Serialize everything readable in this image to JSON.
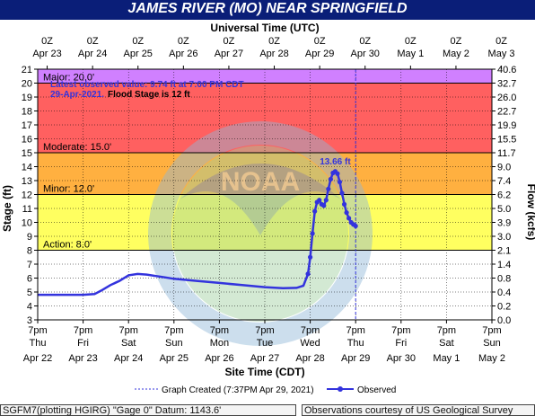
{
  "header": {
    "title": "JAMES RIVER (MO) NEAR SPRINGFIELD"
  },
  "top_axis": {
    "title": "Universal Time (UTC)",
    "hour_labels": [
      "0Z",
      "0Z",
      "0Z",
      "0Z",
      "0Z",
      "0Z",
      "0Z",
      "0Z",
      "0Z",
      "0Z",
      "0Z"
    ],
    "date_labels": [
      "Apr 23",
      "Apr 24",
      "Apr 25",
      "Apr 26",
      "Apr 27",
      "Apr 28",
      "Apr 29",
      "Apr 30",
      "May 1",
      "May 2",
      "May 3"
    ]
  },
  "bottom_axis": {
    "title": "Site Time (CDT)",
    "time_labels": [
      "7pm",
      "7pm",
      "7pm",
      "7pm",
      "7pm",
      "7pm",
      "7pm",
      "7pm",
      "7pm",
      "7pm",
      "7pm"
    ],
    "day_labels": [
      "Thu",
      "Fri",
      "Sat",
      "Sun",
      "Mon",
      "Tue",
      "Wed",
      "Thu",
      "Fri",
      "Sat",
      "Sun"
    ],
    "date_labels": [
      "Apr 22",
      "Apr 23",
      "Apr 24",
      "Apr 25",
      "Apr 26",
      "Apr 27",
      "Apr 28",
      "Apr 29",
      "Apr 30",
      "May 1",
      "May 2"
    ]
  },
  "left_axis": {
    "title": "Stage (ft)",
    "ticks": [
      "3",
      "4",
      "5",
      "6",
      "7",
      "8",
      "9",
      "10",
      "11",
      "12",
      "13",
      "14",
      "15",
      "16",
      "17",
      "18",
      "19",
      "20",
      "21"
    ]
  },
  "right_axis": {
    "title": "Flow (kcfs)",
    "ticks": [
      "0.0",
      "0.2",
      "0.4",
      "0.8",
      "1.4",
      "2.1",
      "3.0",
      "3.9",
      "5.0",
      "6.2",
      "7.4",
      "9.0",
      "11.7",
      "15.5",
      "19.9",
      "22.7",
      "26.0",
      "32.7",
      "40.6"
    ]
  },
  "bands": [
    {
      "label": "Action: 8.0'",
      "from": 8,
      "to": 12,
      "color": "#ffff60"
    },
    {
      "label": "Minor: 12.0'",
      "from": 12,
      "to": 15,
      "color": "#ffb040"
    },
    {
      "label": "Moderate: 15.0'",
      "from": 15,
      "to": 20,
      "color": "#ff6060"
    },
    {
      "label": "Major: 20.0'",
      "from": 20,
      "to": 21,
      "color": "#d080ff"
    }
  ],
  "annotation": {
    "line1": "Latest observed value: 9.74 ft at 7:00 PM CDT",
    "line2_date": "29-Apr-2021.",
    "line2_flood": "Flood Stage is 12 ft"
  },
  "peak_label": "13.66 ft",
  "watermark": {
    "agency": "NOAA",
    "ring_top": "NATIONAL OCEANIC AND ATMOSPHERIC ADMINISTRATION",
    "ring_bottom": "U.S. DEPARTMENT OF COMMERCE"
  },
  "legend": {
    "created": "Graph Created (7:37PM Apr 29, 2021)",
    "observed": "Observed"
  },
  "footer": {
    "left": "SGFM7(plotting HGIRG) \"Gage 0\" Datum: 1143.6'",
    "right": "Observations courtesy of US Geological Survey"
  },
  "colors": {
    "observed": "#3333dd",
    "grid": "#000000",
    "title_bg": "#0a1e78"
  },
  "chart_data": {
    "type": "line",
    "x_unit": "days from Thu Apr 22 7pm CDT",
    "xlim": [
      0,
      10
    ],
    "ylim": [
      3,
      21
    ],
    "created_marker_x": 7.0,
    "series": [
      {
        "name": "Observed",
        "x": [
          0,
          0.25,
          0.5,
          0.75,
          1.0,
          1.25,
          1.4,
          1.6,
          1.8,
          2.0,
          2.2,
          2.4,
          2.6,
          2.8,
          3.0,
          3.5,
          4.0,
          4.5,
          5.0,
          5.4,
          5.7,
          5.85,
          5.95,
          6.0,
          6.05,
          6.1,
          6.15,
          6.2,
          6.25,
          6.3,
          6.35,
          6.4,
          6.45,
          6.5,
          6.55,
          6.6,
          6.65,
          6.7,
          6.75,
          6.8,
          6.85,
          6.9,
          6.95,
          7.0
        ],
        "y": [
          4.8,
          4.8,
          4.8,
          4.8,
          4.8,
          4.85,
          5.1,
          5.5,
          5.8,
          6.2,
          6.3,
          6.25,
          6.15,
          6.05,
          5.95,
          5.8,
          5.65,
          5.5,
          5.35,
          5.28,
          5.3,
          5.45,
          6.3,
          7.5,
          9.2,
          10.8,
          11.45,
          11.6,
          11.3,
          11.2,
          11.6,
          12.4,
          13.1,
          13.55,
          13.66,
          13.5,
          12.9,
          12.1,
          11.3,
          10.7,
          10.3,
          10.0,
          9.85,
          9.74
        ]
      }
    ]
  }
}
